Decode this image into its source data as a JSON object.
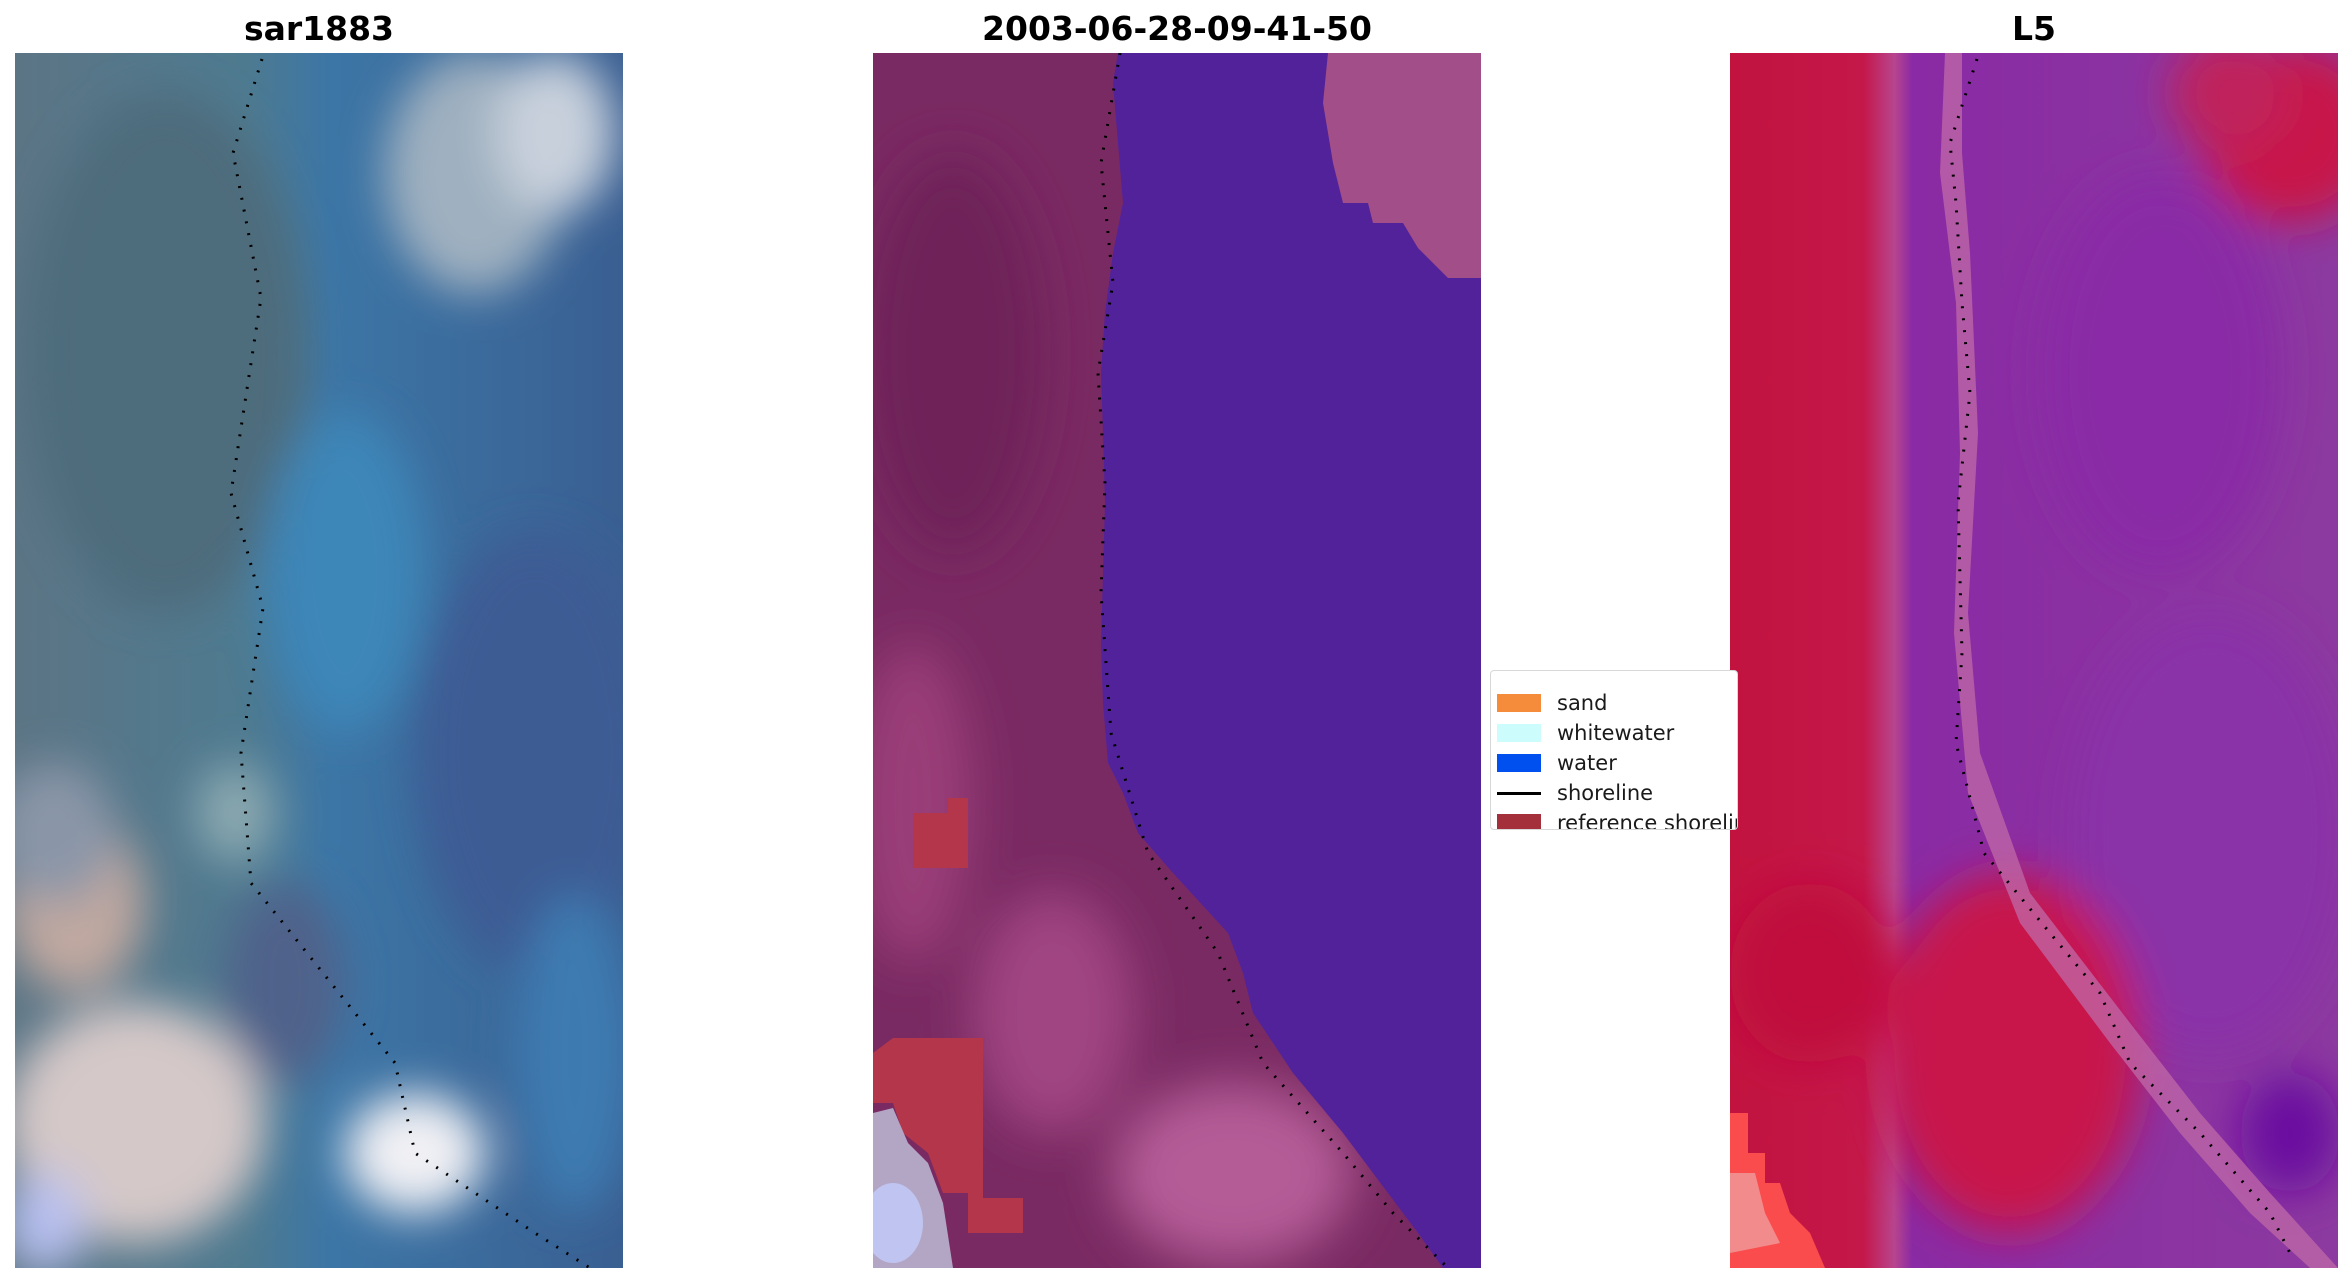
{
  "panels": [
    {
      "title": "sar1883"
    },
    {
      "title": "2003-06-28-09-41-50"
    },
    {
      "title": "L5"
    }
  ],
  "legend": {
    "items": [
      {
        "label": "sand",
        "kind": "patch",
        "color": "#f48c3c"
      },
      {
        "label": "whitewater",
        "kind": "patch",
        "color": "#ccfcfc"
      },
      {
        "label": "water",
        "kind": "patch",
        "color": "#0050f0"
      },
      {
        "label": "shoreline",
        "kind": "line",
        "color": "#000000"
      },
      {
        "label": "reference shoreline",
        "kind": "patch",
        "color": "#a3303a"
      }
    ]
  },
  "colors": {
    "rgb_water": "#3a6e9e",
    "rgb_land": "#5a7280",
    "class_water": "#52229a",
    "class_land": "#7a2a62",
    "class_reference": "#b4364a",
    "ndwi_land": "#c2133f",
    "ndwi_water": "#8a2aa4"
  }
}
